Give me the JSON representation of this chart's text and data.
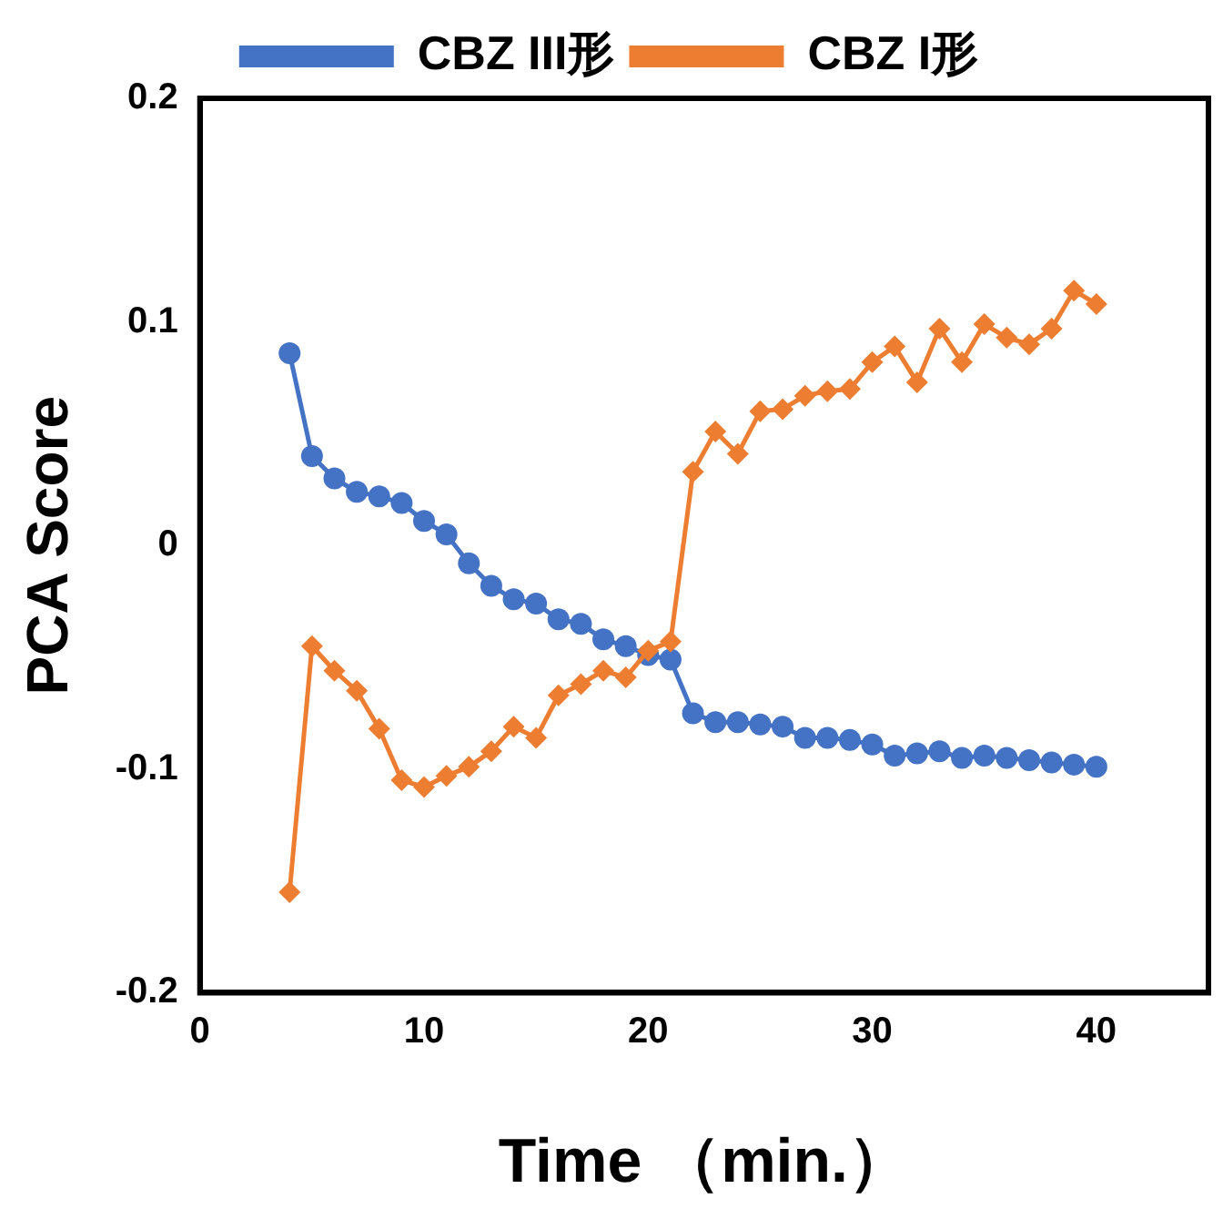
{
  "chart_data": {
    "type": "line",
    "xlabel": "Time （min.）",
    "ylabel": "PCA Score",
    "x": [
      4,
      5,
      6,
      7,
      8,
      9,
      10,
      11,
      12,
      13,
      14,
      15,
      16,
      17,
      18,
      19,
      20,
      21,
      22,
      23,
      24,
      25,
      26,
      27,
      28,
      29,
      30,
      31,
      32,
      33,
      34,
      35,
      36,
      37,
      38,
      39,
      40
    ],
    "xlim": [
      0,
      45
    ],
    "xticks": [
      0,
      10,
      20,
      30,
      40
    ],
    "ylim": [
      -0.2,
      0.2
    ],
    "yticks": [
      -0.2,
      -0.1,
      0,
      0.1,
      0.2
    ],
    "grid": false,
    "legend": "top",
    "line_style": "solid",
    "series": [
      {
        "name": "CBZ III形",
        "color": "#4472c4",
        "marker": "circle",
        "values": [
          0.086,
          0.04,
          0.03,
          0.024,
          0.022,
          0.019,
          0.011,
          0.005,
          -0.008,
          -0.018,
          -0.024,
          -0.026,
          -0.033,
          -0.035,
          -0.042,
          -0.045,
          -0.049,
          -0.051,
          -0.075,
          -0.079,
          -0.079,
          -0.08,
          -0.081,
          -0.086,
          -0.086,
          -0.087,
          -0.089,
          -0.094,
          -0.093,
          -0.092,
          -0.095,
          -0.094,
          -0.095,
          -0.096,
          -0.097,
          -0.098,
          -0.099
        ]
      },
      {
        "name": "CBZ I形",
        "color": "#ed7d31",
        "marker": "diamond",
        "values": [
          -0.155,
          -0.045,
          -0.056,
          -0.065,
          -0.082,
          -0.105,
          -0.108,
          -0.103,
          -0.099,
          -0.092,
          -0.081,
          -0.086,
          -0.067,
          -0.062,
          -0.056,
          -0.059,
          -0.047,
          -0.043,
          0.033,
          0.051,
          0.041,
          0.06,
          0.061,
          0.067,
          0.069,
          0.07,
          0.082,
          0.089,
          0.073,
          0.097,
          0.082,
          0.099,
          0.093,
          0.09,
          0.097,
          0.114,
          0.108
        ]
      }
    ]
  }
}
